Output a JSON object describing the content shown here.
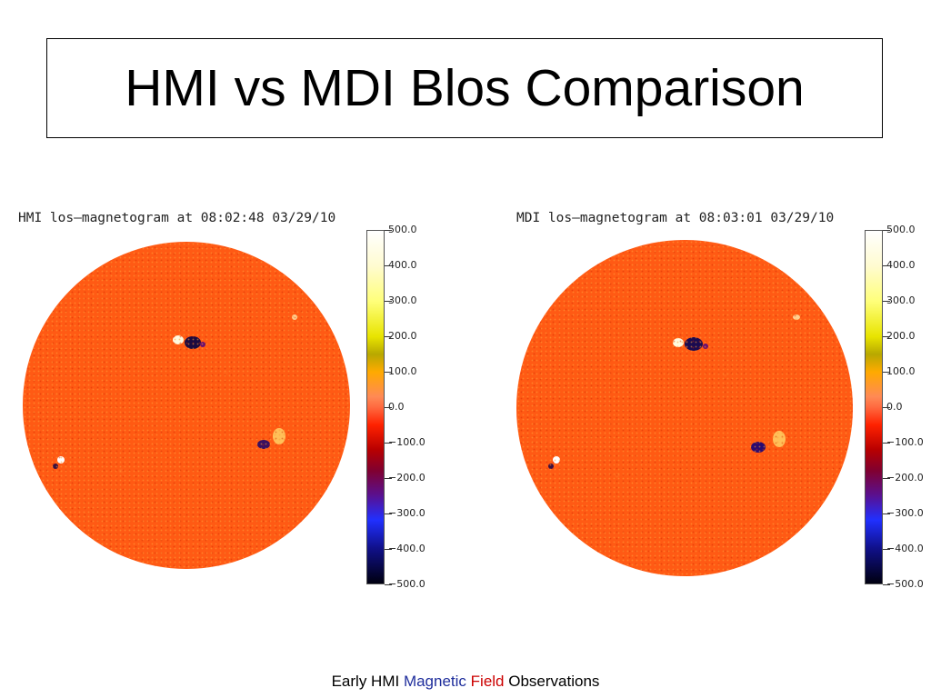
{
  "title": "HMI vs MDI Blos Comparison",
  "panels": [
    {
      "caption": "HMI los—magnetogram at 08:02:48 03/29/10",
      "colorbar_ticks": [
        "500.0",
        "400.0",
        "300.0",
        "200.0",
        "100.0",
        "0.0",
        "−100.0",
        "−200.0",
        "−300.0",
        "−400.0",
        "−500.0"
      ]
    },
    {
      "caption": "MDI los—magnetogram at 08:03:01 03/29/10",
      "colorbar_ticks": [
        "500.0",
        "400.0",
        "300.0",
        "200.0",
        "100.0",
        "0.0",
        "−100.0",
        "−200.0",
        "−300.0",
        "−400.0",
        "−500.0"
      ]
    }
  ],
  "footer": {
    "part1": "Early HMI ",
    "part2": "Magnetic",
    "part3": " ",
    "part4": "Field",
    "part5": " Observations"
  },
  "colors": {
    "disk": "#ff5a12",
    "footer_blue": "#1f2e9c",
    "footer_red": "#cc0000"
  }
}
